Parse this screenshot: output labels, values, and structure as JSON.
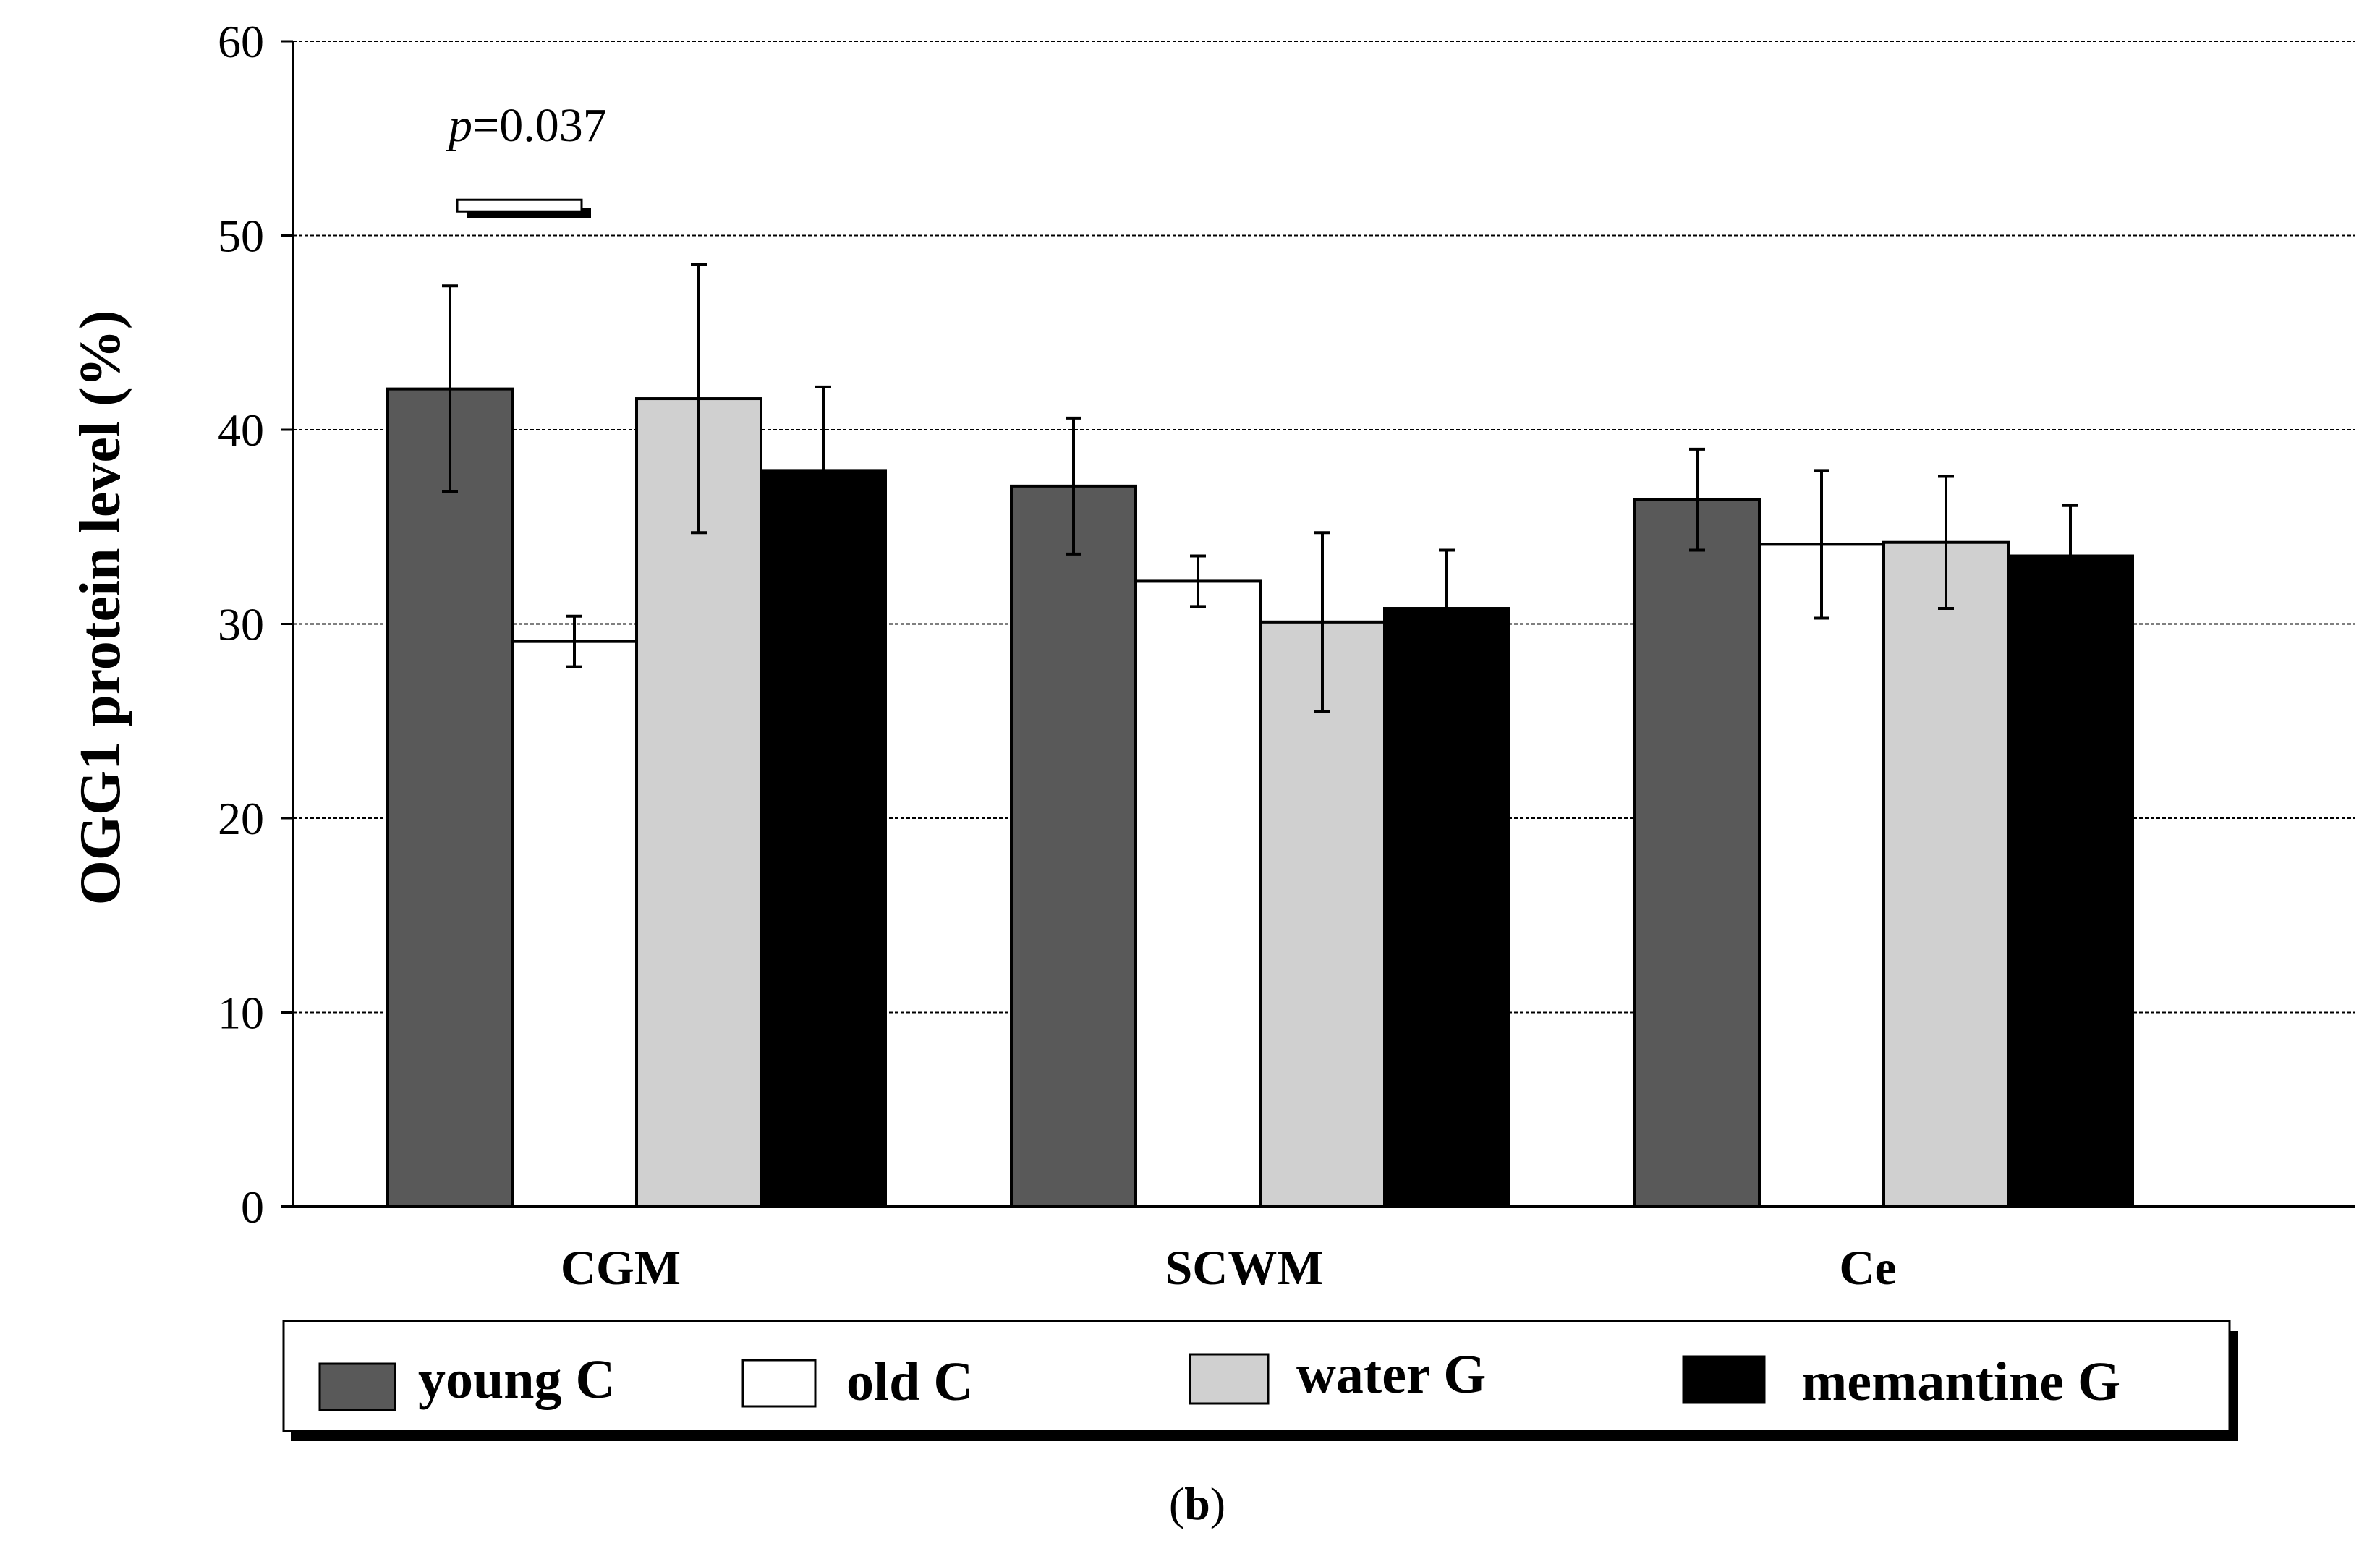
{
  "chart_data": {
    "type": "bar",
    "title": "",
    "xlabel": "",
    "ylabel": "OGG1 protein level (%)",
    "ylim": [
      0,
      60
    ],
    "yticks": [
      0,
      10,
      20,
      30,
      40,
      50,
      60
    ],
    "grid": true,
    "categories": [
      "CGM",
      "SCWM",
      "Ce"
    ],
    "series": [
      {
        "name": "young C",
        "color": "#595959",
        "values": [
          42.1,
          37.1,
          36.4
        ],
        "errors": [
          5.3,
          3.5,
          2.6
        ]
      },
      {
        "name": "old C",
        "color": "#ffffff",
        "values": [
          29.1,
          32.2,
          34.1
        ],
        "errors": [
          1.3,
          1.3,
          3.8
        ]
      },
      {
        "name": "water G",
        "color": "#d0d0d0",
        "values": [
          41.6,
          30.1,
          34.2
        ],
        "errors": [
          6.9,
          4.6,
          3.4
        ]
      },
      {
        "name": "memantine G",
        "color": "#000000",
        "values": [
          37.9,
          30.8,
          33.5
        ],
        "errors": [
          4.3,
          3.0,
          2.6
        ]
      }
    ],
    "annotations": [
      {
        "text": "p=0.037",
        "p_symbol": "p",
        "p_value": "=0.037",
        "category": "CGM",
        "value": 51.5
      }
    ],
    "legend_position": "bottom",
    "panel_label": "(b)"
  }
}
